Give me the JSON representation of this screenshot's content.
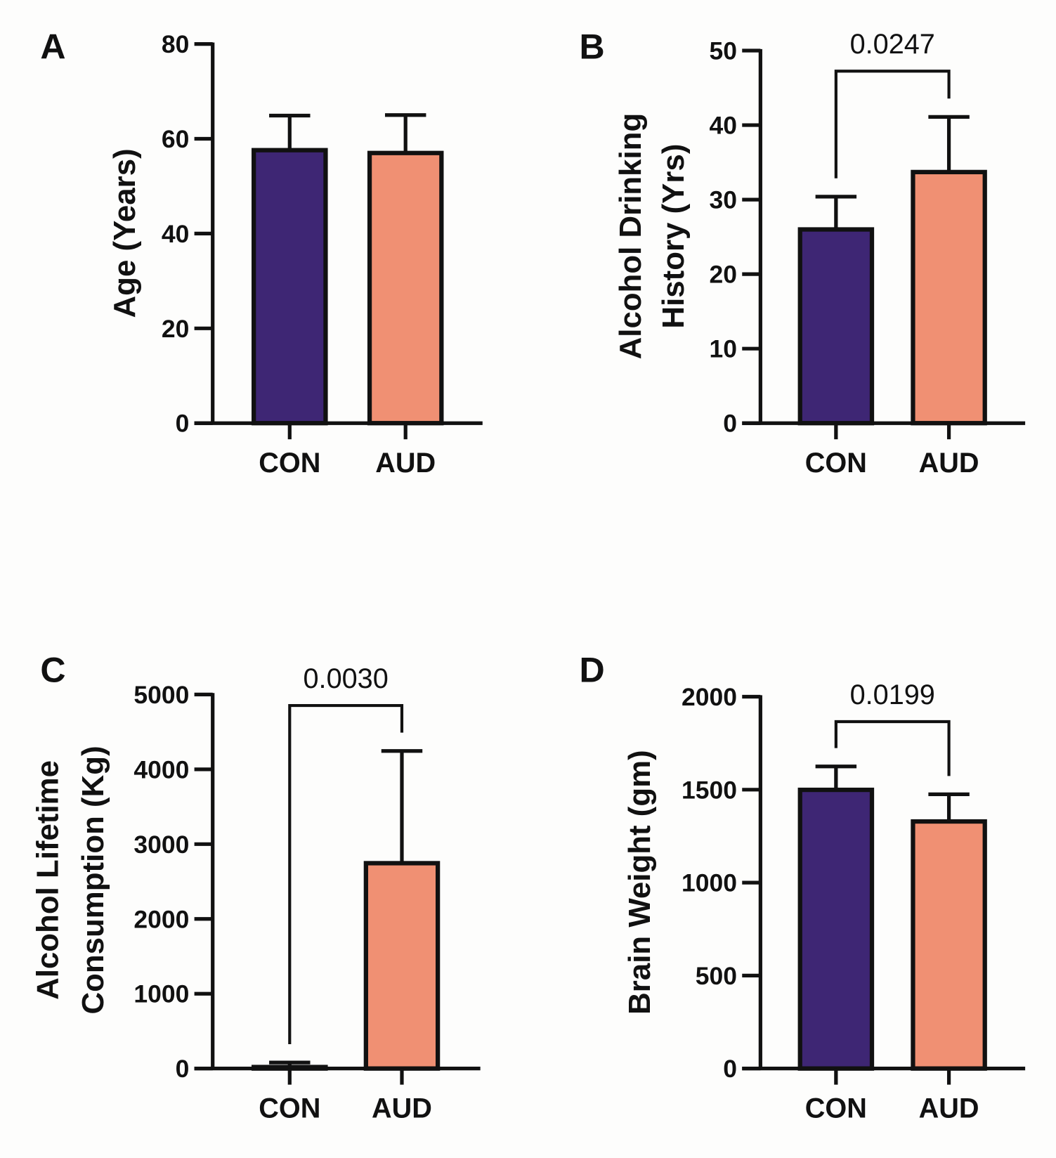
{
  "colors": {
    "CON": "#3e2674",
    "AUD": "#f09073",
    "stroke": "#111111"
  },
  "chart_data": [
    {
      "type": "bar",
      "panel": "A",
      "categories": [
        "CON",
        "AUD"
      ],
      "values": [
        57.6,
        57.0
      ],
      "error_upper": [
        64.9,
        65.0
      ],
      "ylabel": [
        "Age (Years)"
      ],
      "ylim": [
        0,
        80
      ],
      "yticks": [
        0,
        20,
        40,
        60,
        80
      ],
      "yticklabels": [
        "0",
        "20",
        "40",
        "60",
        "80"
      ],
      "significance": null
    },
    {
      "type": "bar",
      "panel": "B",
      "categories": [
        "CON",
        "AUD"
      ],
      "values": [
        26.0,
        33.7
      ],
      "error_upper": [
        30.4,
        41.1
      ],
      "ylabel": [
        "Alcohol  Drinking",
        "History (Yrs)"
      ],
      "ylim": [
        0,
        50
      ],
      "yticks": [
        0,
        10,
        20,
        30,
        40,
        50
      ],
      "yticklabels": [
        "0",
        "10",
        "20",
        "30",
        "40",
        "50"
      ],
      "significance": "0.0247"
    },
    {
      "type": "bar",
      "panel": "C",
      "categories": [
        "CON",
        "AUD"
      ],
      "values": [
        20,
        2745
      ],
      "error_upper": [
        80,
        4245
      ],
      "ylabel": [
        "Alcohol Lifetime",
        "Consumption (Kg)"
      ],
      "ylim": [
        0,
        5000
      ],
      "yticks": [
        0,
        1000,
        2000,
        3000,
        4000,
        5000
      ],
      "yticklabels": [
        "0",
        "1000",
        "2000",
        "3000",
        "4000",
        "5000"
      ],
      "significance": "0.0030"
    },
    {
      "type": "bar",
      "panel": "D",
      "categories": [
        "CON",
        "AUD"
      ],
      "values": [
        1499,
        1329
      ],
      "error_upper": [
        1625,
        1475
      ],
      "ylabel": [
        "Brain Weight (gm)"
      ],
      "ylim": [
        0,
        2000
      ],
      "yticks": [
        0,
        500,
        1000,
        1500,
        2000
      ],
      "yticklabels": [
        "0",
        "500",
        "1000",
        "1500",
        "2000"
      ],
      "significance": "0.0199"
    }
  ]
}
